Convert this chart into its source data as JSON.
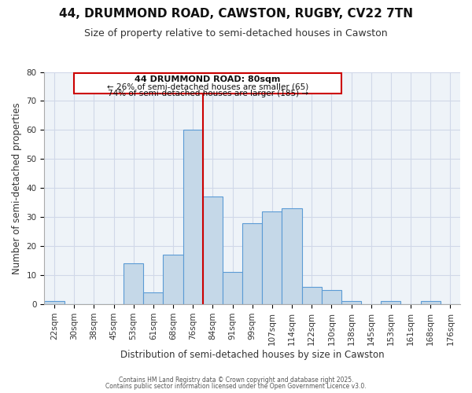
{
  "title": "44, DRUMMOND ROAD, CAWSTON, RUGBY, CV22 7TN",
  "subtitle": "Size of property relative to semi-detached houses in Cawston",
  "xlabel": "Distribution of semi-detached houses by size in Cawston",
  "ylabel": "Number of semi-detached properties",
  "bin_labels": [
    "22sqm",
    "30sqm",
    "38sqm",
    "45sqm",
    "53sqm",
    "61sqm",
    "68sqm",
    "76sqm",
    "84sqm",
    "91sqm",
    "99sqm",
    "107sqm",
    "114sqm",
    "122sqm",
    "130sqm",
    "138sqm",
    "145sqm",
    "153sqm",
    "161sqm",
    "168sqm",
    "176sqm"
  ],
  "bar_heights": [
    1,
    0,
    0,
    0,
    14,
    4,
    17,
    60,
    37,
    11,
    28,
    32,
    33,
    6,
    5,
    1,
    0,
    1,
    0,
    1,
    0
  ],
  "bar_color": "#c5d8e8",
  "bar_edge_color": "#5b9bd5",
  "grid_color": "#d0d8e8",
  "background_color": "#eef3f8",
  "ylim": [
    0,
    80
  ],
  "yticks": [
    0,
    10,
    20,
    30,
    40,
    50,
    60,
    70,
    80
  ],
  "property_label": "44 DRUMMOND ROAD: 80sqm",
  "property_bar_index": 7,
  "vline_color": "#cc0000",
  "annotation_smaller_pct": "26%",
  "annotation_smaller_count": 65,
  "annotation_larger_pct": "74%",
  "annotation_larger_count": 185,
  "box_color": "#cc0000",
  "footer_line1": "Contains HM Land Registry data © Crown copyright and database right 2025.",
  "footer_line2": "Contains public sector information licensed under the Open Government Licence v3.0.",
  "title_fontsize": 11,
  "subtitle_fontsize": 9,
  "axis_label_fontsize": 8.5,
  "tick_fontsize": 7.5,
  "annotation_fontsize_bold": 8,
  "annotation_fontsize": 7.5
}
